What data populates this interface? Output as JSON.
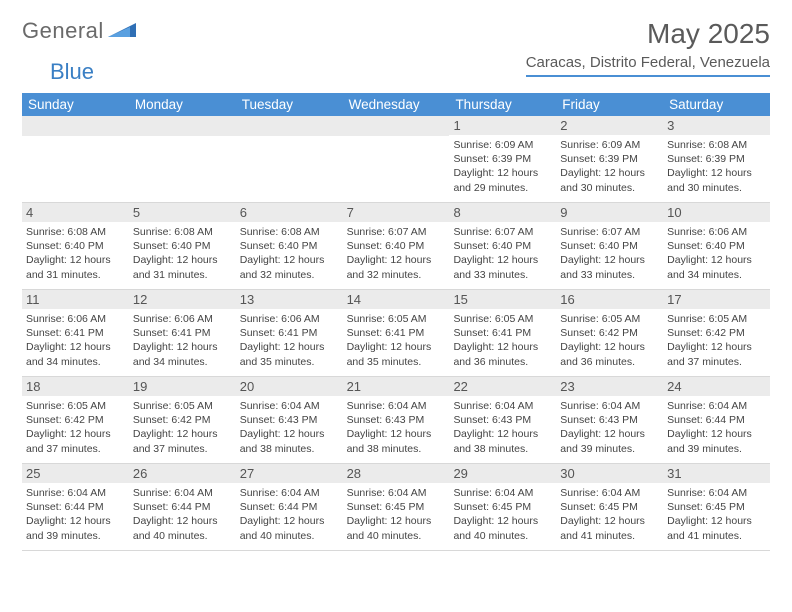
{
  "logo": {
    "text1": "General",
    "text2": "Blue"
  },
  "title": "May 2025",
  "subtitle": "Caracas, Distrito Federal, Venezuela",
  "colors": {
    "header_bg": "#4a8fd4",
    "header_text": "#ffffff",
    "daynum_bg": "#ebebeb",
    "text": "#444444",
    "logo_gray": "#6a6a6a",
    "logo_blue": "#3a7fc4"
  },
  "weekdays": [
    "Sunday",
    "Monday",
    "Tuesday",
    "Wednesday",
    "Thursday",
    "Friday",
    "Saturday"
  ],
  "weeks": [
    [
      null,
      null,
      null,
      null,
      {
        "n": "1",
        "sr": "6:09 AM",
        "ss": "6:39 PM",
        "dl": "12 hours and 29 minutes."
      },
      {
        "n": "2",
        "sr": "6:09 AM",
        "ss": "6:39 PM",
        "dl": "12 hours and 30 minutes."
      },
      {
        "n": "3",
        "sr": "6:08 AM",
        "ss": "6:39 PM",
        "dl": "12 hours and 30 minutes."
      }
    ],
    [
      {
        "n": "4",
        "sr": "6:08 AM",
        "ss": "6:40 PM",
        "dl": "12 hours and 31 minutes."
      },
      {
        "n": "5",
        "sr": "6:08 AM",
        "ss": "6:40 PM",
        "dl": "12 hours and 31 minutes."
      },
      {
        "n": "6",
        "sr": "6:08 AM",
        "ss": "6:40 PM",
        "dl": "12 hours and 32 minutes."
      },
      {
        "n": "7",
        "sr": "6:07 AM",
        "ss": "6:40 PM",
        "dl": "12 hours and 32 minutes."
      },
      {
        "n": "8",
        "sr": "6:07 AM",
        "ss": "6:40 PM",
        "dl": "12 hours and 33 minutes."
      },
      {
        "n": "9",
        "sr": "6:07 AM",
        "ss": "6:40 PM",
        "dl": "12 hours and 33 minutes."
      },
      {
        "n": "10",
        "sr": "6:06 AM",
        "ss": "6:40 PM",
        "dl": "12 hours and 34 minutes."
      }
    ],
    [
      {
        "n": "11",
        "sr": "6:06 AM",
        "ss": "6:41 PM",
        "dl": "12 hours and 34 minutes."
      },
      {
        "n": "12",
        "sr": "6:06 AM",
        "ss": "6:41 PM",
        "dl": "12 hours and 34 minutes."
      },
      {
        "n": "13",
        "sr": "6:06 AM",
        "ss": "6:41 PM",
        "dl": "12 hours and 35 minutes."
      },
      {
        "n": "14",
        "sr": "6:05 AM",
        "ss": "6:41 PM",
        "dl": "12 hours and 35 minutes."
      },
      {
        "n": "15",
        "sr": "6:05 AM",
        "ss": "6:41 PM",
        "dl": "12 hours and 36 minutes."
      },
      {
        "n": "16",
        "sr": "6:05 AM",
        "ss": "6:42 PM",
        "dl": "12 hours and 36 minutes."
      },
      {
        "n": "17",
        "sr": "6:05 AM",
        "ss": "6:42 PM",
        "dl": "12 hours and 37 minutes."
      }
    ],
    [
      {
        "n": "18",
        "sr": "6:05 AM",
        "ss": "6:42 PM",
        "dl": "12 hours and 37 minutes."
      },
      {
        "n": "19",
        "sr": "6:05 AM",
        "ss": "6:42 PM",
        "dl": "12 hours and 37 minutes."
      },
      {
        "n": "20",
        "sr": "6:04 AM",
        "ss": "6:43 PM",
        "dl": "12 hours and 38 minutes."
      },
      {
        "n": "21",
        "sr": "6:04 AM",
        "ss": "6:43 PM",
        "dl": "12 hours and 38 minutes."
      },
      {
        "n": "22",
        "sr": "6:04 AM",
        "ss": "6:43 PM",
        "dl": "12 hours and 38 minutes."
      },
      {
        "n": "23",
        "sr": "6:04 AM",
        "ss": "6:43 PM",
        "dl": "12 hours and 39 minutes."
      },
      {
        "n": "24",
        "sr": "6:04 AM",
        "ss": "6:44 PM",
        "dl": "12 hours and 39 minutes."
      }
    ],
    [
      {
        "n": "25",
        "sr": "6:04 AM",
        "ss": "6:44 PM",
        "dl": "12 hours and 39 minutes."
      },
      {
        "n": "26",
        "sr": "6:04 AM",
        "ss": "6:44 PM",
        "dl": "12 hours and 40 minutes."
      },
      {
        "n": "27",
        "sr": "6:04 AM",
        "ss": "6:44 PM",
        "dl": "12 hours and 40 minutes."
      },
      {
        "n": "28",
        "sr": "6:04 AM",
        "ss": "6:45 PM",
        "dl": "12 hours and 40 minutes."
      },
      {
        "n": "29",
        "sr": "6:04 AM",
        "ss": "6:45 PM",
        "dl": "12 hours and 40 minutes."
      },
      {
        "n": "30",
        "sr": "6:04 AM",
        "ss": "6:45 PM",
        "dl": "12 hours and 41 minutes."
      },
      {
        "n": "31",
        "sr": "6:04 AM",
        "ss": "6:45 PM",
        "dl": "12 hours and 41 minutes."
      }
    ]
  ],
  "labels": {
    "sunrise": "Sunrise: ",
    "sunset": "Sunset: ",
    "daylight": "Daylight: "
  }
}
